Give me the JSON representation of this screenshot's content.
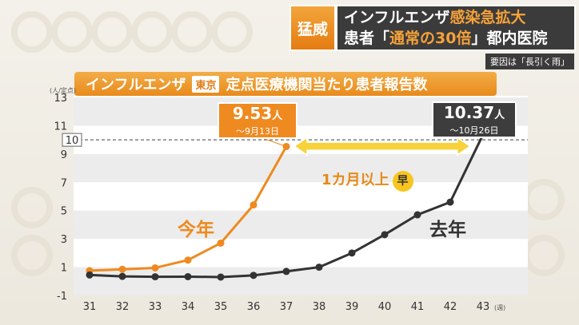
{
  "headline": {
    "tag": "猛威",
    "line1_a": "インフルエンザ",
    "line1_b": "感染急拡大",
    "line2_a": "患者「",
    "line2_b": "通常の30倍",
    "line2_c": "」都内医院"
  },
  "sub_note": "要因は「長引く雨」",
  "chart_title": {
    "prefix": "インフルエンザ",
    "region": "東京",
    "suffix": "定点医療機関当たり患者報告数"
  },
  "chart_data": {
    "type": "line",
    "x": [
      31,
      32,
      33,
      34,
      35,
      36,
      37,
      38,
      39,
      40,
      41,
      42,
      43
    ],
    "ylim": [
      -1,
      13
    ],
    "y_ticks": [
      -1,
      1,
      3,
      5,
      7,
      9,
      11,
      13
    ],
    "ylabel": "(人/定点)",
    "xlabel": "(週)",
    "threshold": 10,
    "threshold_label": "10",
    "series": [
      {
        "name": "今年",
        "color": "#ee8a20",
        "values": [
          0.75,
          0.85,
          0.95,
          1.5,
          2.7,
          5.4,
          9.53,
          null,
          null,
          null,
          null,
          null,
          null
        ]
      },
      {
        "name": "去年",
        "color": "#333333",
        "values": [
          0.45,
          0.35,
          0.32,
          0.33,
          0.3,
          0.42,
          0.7,
          1.0,
          2.0,
          3.3,
          4.7,
          5.6,
          10.37
        ]
      }
    ],
    "callouts": [
      {
        "value": "9.53",
        "unit": "人",
        "date": "〜9月13日"
      },
      {
        "value": "10.37",
        "unit": "人",
        "date": "〜10月26日"
      }
    ],
    "gap_label": "1カ月以上",
    "gap_badge": "早"
  }
}
